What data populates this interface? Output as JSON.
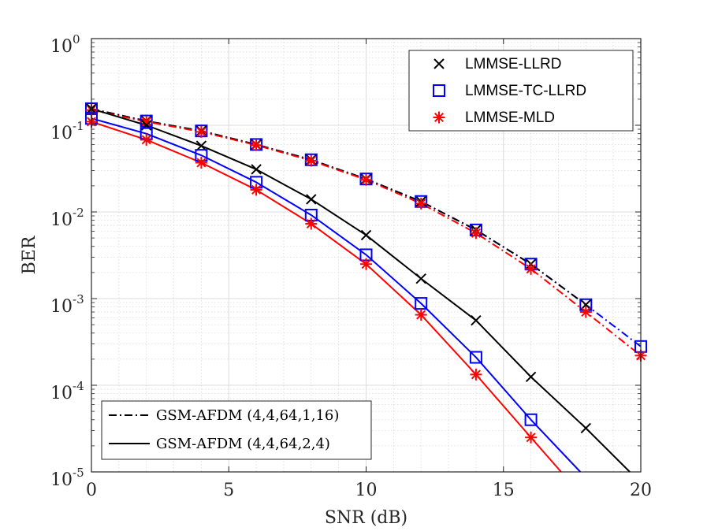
{
  "chart_data": {
    "type": "line",
    "xlabel": "SNR (dB)",
    "ylabel": "BER",
    "xlim": [
      0,
      20
    ],
    "ylim": [
      1e-05,
      1
    ],
    "yscale": "log",
    "grid": true,
    "x_ticks": [
      "0",
      "5",
      "10",
      "15",
      "20"
    ],
    "y_ticks": [
      {
        "base": "10",
        "exp": "0"
      },
      {
        "base": "10",
        "exp": "-1"
      },
      {
        "base": "10",
        "exp": "-2"
      },
      {
        "base": "10",
        "exp": "-3"
      },
      {
        "base": "10",
        "exp": "-4"
      },
      {
        "base": "10",
        "exp": "-5"
      }
    ],
    "marker_legend": {
      "placement": "top-right",
      "entries": [
        {
          "label": "LMMSE-LLRD",
          "marker": "x",
          "color": "#000000"
        },
        {
          "label": "LMMSE-TC-LLRD",
          "marker": "square",
          "color": "#0000ff"
        },
        {
          "label": "LMMSE-MLD",
          "marker": "asterisk",
          "color": "#ff0000"
        }
      ]
    },
    "line_legend": {
      "placement": "bottom-left",
      "entries": [
        {
          "label": "GSM-AFDM (4,4,64,1,16)",
          "style": "dashdot"
        },
        {
          "label": "GSM-AFDM (4,4,64,2,4)",
          "style": "solid"
        }
      ]
    },
    "series": [
      {
        "marker": "square",
        "color": "#0000ff",
        "style": "dashdot",
        "x": [
          0,
          2,
          4,
          6,
          8,
          10,
          12,
          14,
          16,
          18,
          20
        ],
        "y": [
          0.155,
          0.112,
          0.086,
          0.06,
          0.04,
          0.024,
          0.0132,
          0.0062,
          0.0025,
          0.00085,
          0.00028
        ]
      },
      {
        "marker": "x",
        "color": "#000000",
        "style": "dashdot",
        "x": [
          0,
          2,
          4,
          6,
          8,
          10,
          12,
          14,
          16,
          18
        ],
        "y": [
          0.155,
          0.112,
          0.086,
          0.06,
          0.04,
          0.024,
          0.0132,
          0.0062,
          0.0025,
          0.00085
        ]
      },
      {
        "marker": "asterisk",
        "color": "#ff0000",
        "style": "dashdot",
        "x": [
          0,
          2,
          4,
          6,
          8,
          10,
          12,
          14,
          16,
          18,
          20
        ],
        "y": [
          0.15,
          0.11,
          0.084,
          0.059,
          0.039,
          0.0235,
          0.0125,
          0.0057,
          0.0022,
          0.0007,
          0.00022
        ]
      },
      {
        "marker": "x",
        "color": "#000000",
        "style": "solid",
        "x": [
          0,
          2,
          4,
          6,
          8,
          10,
          12,
          14,
          16,
          18,
          19.6
        ],
        "y": [
          0.155,
          0.1,
          0.058,
          0.031,
          0.014,
          0.0054,
          0.0017,
          0.00056,
          0.000125,
          3.2e-05,
          1e-05
        ],
        "marker_count": 10
      },
      {
        "marker": "square",
        "color": "#0000ff",
        "style": "solid",
        "x": [
          0,
          2,
          4,
          6,
          8,
          10,
          12,
          14,
          16,
          17.8
        ],
        "y": [
          0.12,
          0.08,
          0.045,
          0.022,
          0.0092,
          0.0032,
          0.00088,
          0.00021,
          4e-05,
          1e-05
        ],
        "marker_count": 9
      },
      {
        "marker": "asterisk",
        "color": "#ff0000",
        "style": "solid",
        "x": [
          0,
          2,
          4,
          6,
          8,
          10,
          12,
          14,
          16,
          17.1
        ],
        "y": [
          0.11,
          0.068,
          0.037,
          0.018,
          0.0073,
          0.0025,
          0.00065,
          0.000133,
          2.5e-05,
          1e-05
        ],
        "marker_count": 9
      }
    ]
  }
}
